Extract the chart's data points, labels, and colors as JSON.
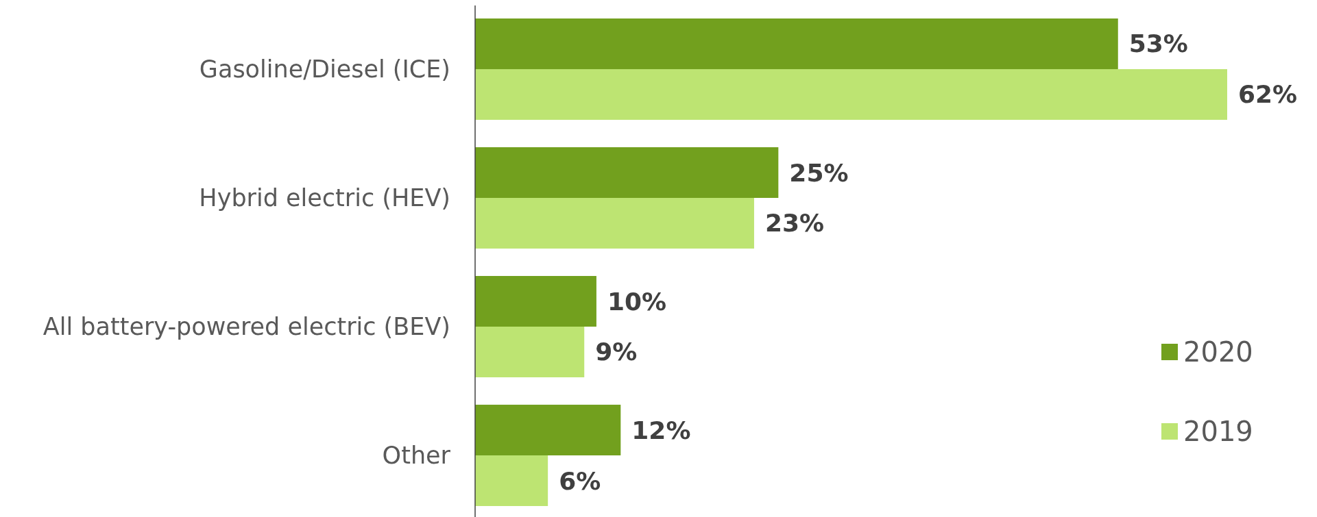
{
  "chart_data": {
    "type": "bar",
    "orientation": "horizontal",
    "categories": [
      "Gasoline/Diesel (ICE)",
      "Hybrid electric (HEV)",
      "All battery-powered electric (BEV)",
      "Other"
    ],
    "series": [
      {
        "name": "2020",
        "color": "#72a01e",
        "values": [
          53,
          25,
          10,
          12
        ],
        "value_labels": [
          "53%",
          "25%",
          "10%",
          "12%"
        ]
      },
      {
        "name": "2019",
        "color": "#bde472",
        "values": [
          62,
          23,
          9,
          6
        ],
        "value_labels": [
          "62%",
          "23%",
          "9%",
          "6%"
        ]
      }
    ],
    "legend": "right"
  }
}
